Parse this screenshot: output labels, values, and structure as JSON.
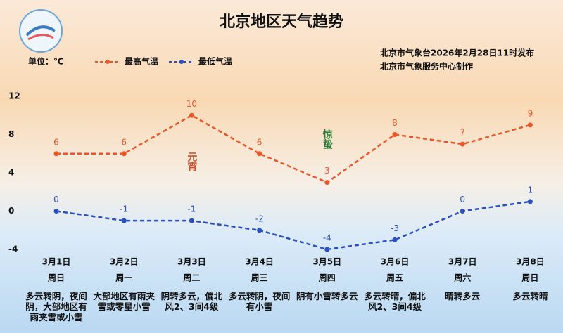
{
  "chart_data": {
    "type": "line",
    "title": "北京地区天气趋势",
    "unit_label": "单位：℃",
    "source": [
      "北京市气象台2026年2月28日11时发布",
      "北京市气象服务中心制作"
    ],
    "categories": [
      "3月1日",
      "3月2日",
      "3月3日",
      "3月4日",
      "3月5日",
      "3月6日",
      "3月7日",
      "3月8日"
    ],
    "weekdays": [
      "周日",
      "周一",
      "周二",
      "周三",
      "周四",
      "周五",
      "周六",
      "周日"
    ],
    "descriptions": [
      "多云转阴，夜间阴，大部地区有雨夹雪或小雪",
      "大部地区有雨夹雪或零星小雪",
      "阴转多云，偏北风2、3间4级",
      "多云转阴，夜间有小雪",
      "阴有小雪转多云",
      "多云转晴，偏北风2、3间4级",
      "晴转多云",
      "多云转晴"
    ],
    "series": [
      {
        "name": "最高气温",
        "color": "#e8562a",
        "values": [
          6,
          6,
          10,
          6,
          3,
          8,
          7,
          9
        ]
      },
      {
        "name": "最低气温",
        "color": "#2a4fc0",
        "values": [
          0,
          -1,
          -1,
          -2,
          -4,
          -3,
          0,
          1
        ]
      }
    ],
    "annotations": [
      {
        "text": "元宵",
        "category": 2,
        "color": "#c8502a"
      },
      {
        "text": "惊蛰",
        "category": 4,
        "color": "#2e7a3a"
      }
    ],
    "ylim": [
      -4,
      12
    ],
    "yticks": [
      12,
      8,
      4,
      0,
      -4
    ],
    "grid": false
  }
}
